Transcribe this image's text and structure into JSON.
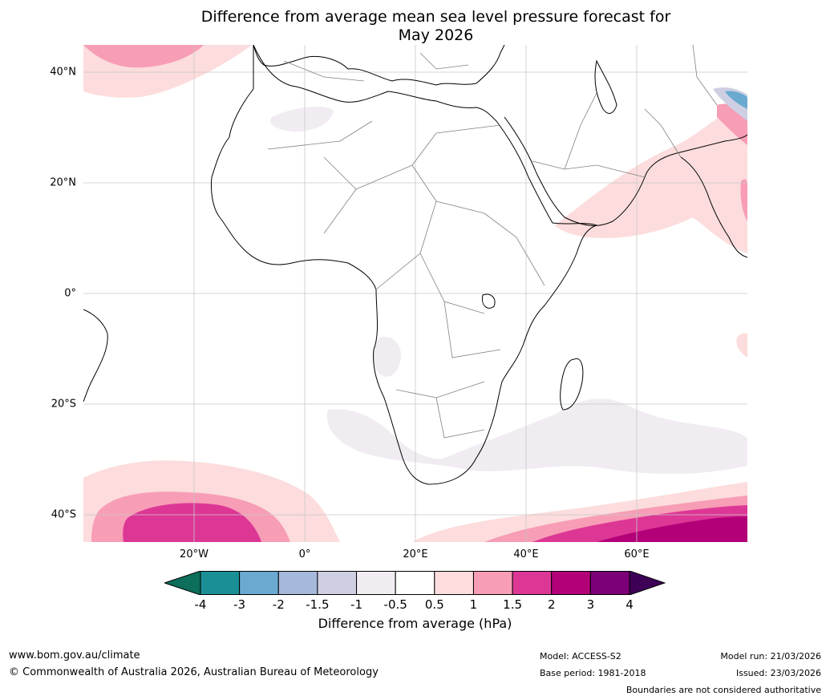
{
  "title_line1": "Difference from average mean sea level pressure forecast for",
  "title_line2": "May 2026",
  "map": {
    "lat_labels": [
      "40°N",
      "20°N",
      "0°",
      "20°S",
      "40°S"
    ],
    "lon_labels": [
      "20°W",
      "0°",
      "20°E",
      "40°E",
      "60°E"
    ]
  },
  "colorbar": {
    "ticks": [
      "-4",
      "-3",
      "-2",
      "-1.5",
      "-1",
      "-0.5",
      "0.5",
      "1",
      "1.5",
      "2",
      "3",
      "4"
    ],
    "colors": [
      "#1a9096",
      "#6aaad0",
      "#a7b9da",
      "#cfcfe3",
      "#f0ecf2",
      "#ffffff",
      "#fcdcdc",
      "#f79db6",
      "#dd3796",
      "#b30079",
      "#7b0077"
    ],
    "under_color": "#0c6e5b",
    "over_color": "#3e0056",
    "label": "Difference from average (hPa)"
  },
  "footer": {
    "url": "www.bom.gov.au/climate",
    "copyright": "© Commonwealth of Australia 2026, Australian Bureau of Meteorology",
    "model": "Model: ACCESS-S2",
    "base_period": "Base period: 1981-2018",
    "model_run": "Model run: 21/03/2026",
    "issued": "Issued: 23/03/2026",
    "disclaimer": "Boundaries are not considered authoritative"
  }
}
